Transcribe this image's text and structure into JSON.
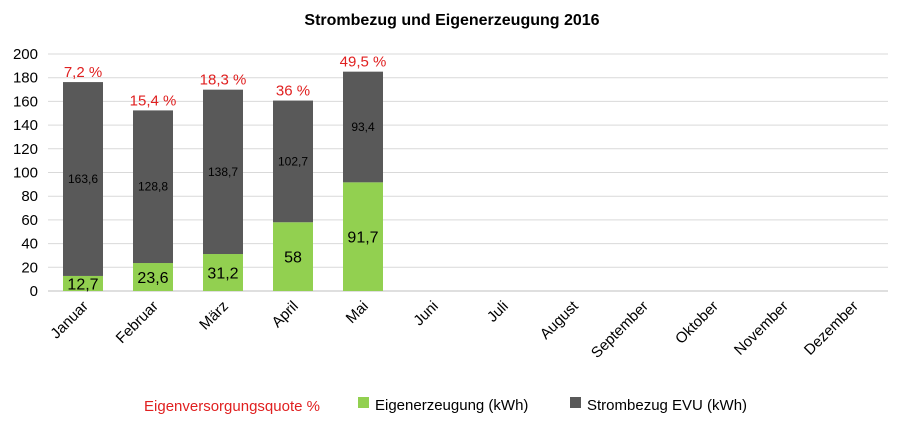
{
  "chart_data": {
    "type": "bar",
    "stacked": true,
    "title": "Strombezug und Eigenerzeugung 2016",
    "categories": [
      "Januar",
      "Februar",
      "März",
      "April",
      "Mai",
      "Juni",
      "Juli",
      "August",
      "September",
      "Oktober",
      "November",
      "Dezember"
    ],
    "series": [
      {
        "name": "Eigenerzeugung (kWh)",
        "color": "#92d050",
        "values": [
          12.7,
          23.6,
          31.2,
          58,
          91.7,
          null,
          null,
          null,
          null,
          null,
          null,
          null
        ],
        "labels": [
          "12,7",
          "23,6",
          "31,2",
          "58",
          "91,7"
        ]
      },
      {
        "name": "Strombezug EVU (kWh)",
        "color": "#595959",
        "values": [
          163.6,
          128.8,
          138.7,
          102.7,
          93.4,
          null,
          null,
          null,
          null,
          null,
          null,
          null
        ],
        "labels": [
          "163,6",
          "128,8",
          "138,7",
          "102,7",
          "93,4"
        ]
      }
    ],
    "quota": {
      "name": "Eigenversorgungsquote %",
      "color": "#e02020",
      "labels": [
        "7,2 %",
        "15,4 %",
        "18,3 %",
        "36 %",
        "49,5 %"
      ]
    },
    "ylim": [
      0,
      200
    ],
    "yticks": [
      0,
      20,
      40,
      60,
      80,
      100,
      120,
      140,
      160,
      180,
      200
    ],
    "grid": true,
    "legend_position": "bottom"
  }
}
